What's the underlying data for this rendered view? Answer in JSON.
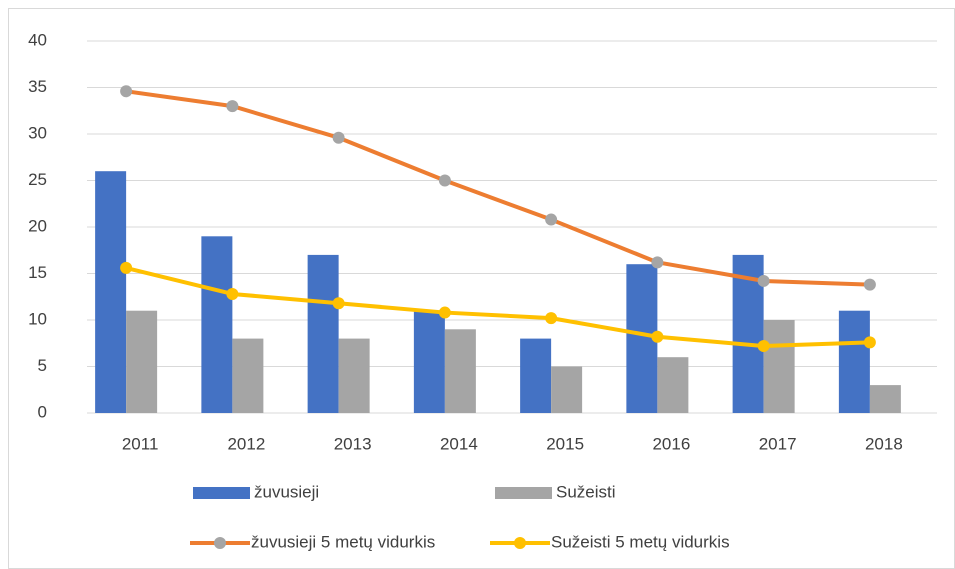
{
  "chart_data": {
    "type": "bar",
    "categories": [
      "2011",
      "2012",
      "2013",
      "2014",
      "2015",
      "2016",
      "2017",
      "2018"
    ],
    "series": [
      {
        "name": "žuvusieji",
        "color": "#4472c4",
        "type": "bar",
        "values": [
          26,
          19,
          17,
          11,
          8,
          16,
          17,
          11
        ]
      },
      {
        "name": "Sužeisti",
        "color": "#a5a5a5",
        "type": "bar",
        "values": [
          11,
          8,
          8,
          9,
          5,
          6,
          10,
          3
        ]
      },
      {
        "name": "žuvusieji 5 metų vidurkis",
        "color": "#ed7d31",
        "marker_color": "#a5a5a5",
        "type": "line",
        "values": [
          34.6,
          33,
          29.6,
          25,
          20.8,
          16.2,
          14.2,
          13.8
        ]
      },
      {
        "name": "Sužeisti 5 metų vidurkis",
        "color": "#ffc000",
        "marker_color": "#ffc000",
        "type": "line",
        "values": [
          15.6,
          12.8,
          11.8,
          10.8,
          10.2,
          8.2,
          7.2,
          7.6
        ]
      }
    ],
    "ylim": [
      0,
      40
    ],
    "yticks": [
      0,
      5,
      10,
      15,
      20,
      25,
      30,
      35,
      40
    ],
    "grid": true,
    "legend": "bottom"
  }
}
